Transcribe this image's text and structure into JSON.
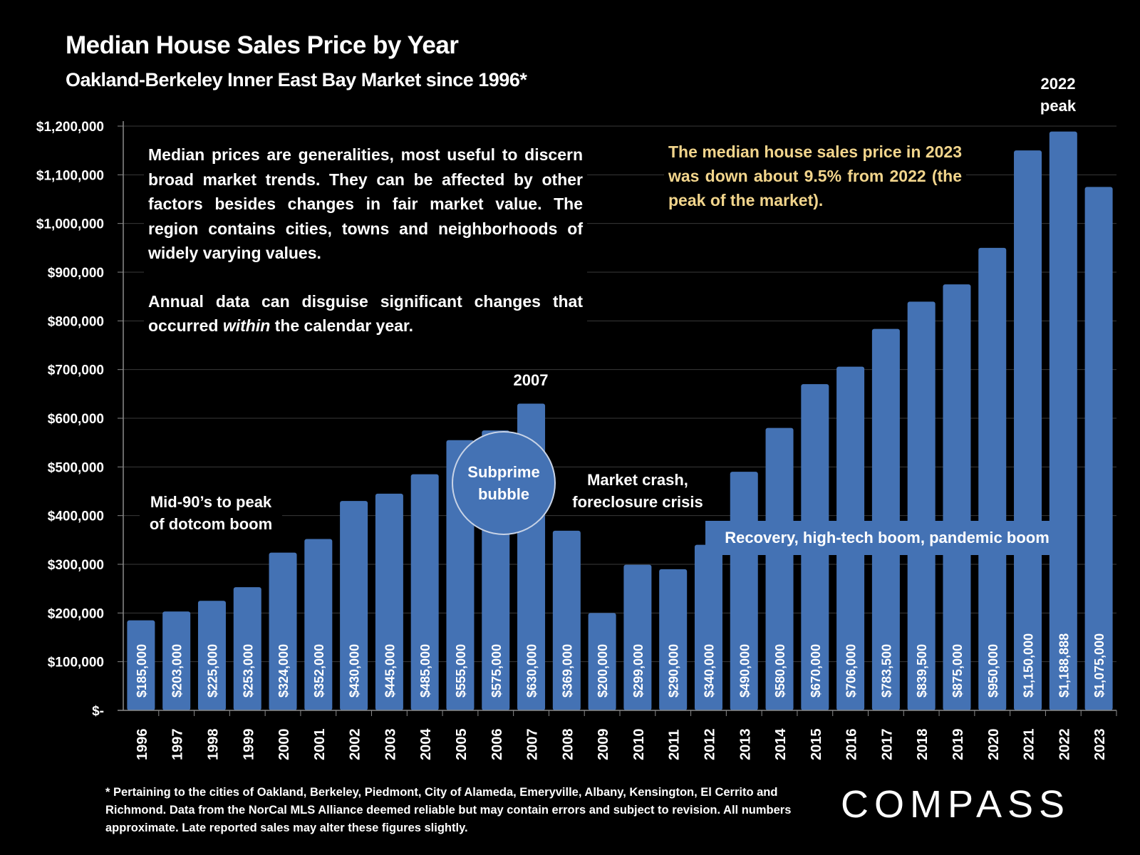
{
  "chart_data": {
    "type": "bar",
    "title": "Median House Sales Price by Year",
    "subtitle": "Oakland-Berkeley Inner East Bay Market since 1996*",
    "xlabel": "",
    "ylabel": "",
    "ylim": [
      0,
      1200000
    ],
    "grid": true,
    "categories": [
      "1996",
      "1997",
      "1998",
      "1999",
      "2000",
      "2001",
      "2002",
      "2003",
      "2004",
      "2005",
      "2006",
      "2007",
      "2008",
      "2009",
      "2010",
      "2011",
      "2012",
      "2013",
      "2014",
      "2015",
      "2016",
      "2017",
      "2018",
      "2019",
      "2020",
      "2021",
      "2022",
      "2023"
    ],
    "values": [
      185000,
      203000,
      225000,
      253000,
      324000,
      352000,
      430000,
      445000,
      485000,
      555000,
      575000,
      630000,
      369000,
      200000,
      299000,
      290000,
      340000,
      490000,
      580000,
      670000,
      706000,
      783500,
      839500,
      875000,
      950000,
      1150000,
      1188888,
      1075000
    ],
    "data_labels": [
      "$185,000",
      "$203,000",
      "$225,000",
      "$253,000",
      "$324,000",
      "$352,000",
      "$430,000",
      "$445,000",
      "$485,000",
      "$555,000",
      "$575,000",
      "$630,000",
      "$369,000",
      "$200,000",
      "$299,000",
      "$290,000",
      "$340,000",
      "$490,000",
      "$580,000",
      "$670,000",
      "$706,000",
      "$783,500",
      "$839,500",
      "$875,000",
      "$950,000",
      "$1,150,000",
      "$1,188,888",
      "$1,075,000"
    ],
    "y_ticks": [
      {
        "value": 0,
        "label": "$-"
      },
      {
        "value": 100000,
        "label": "$100,000"
      },
      {
        "value": 200000,
        "label": "$200,000"
      },
      {
        "value": 300000,
        "label": "$300,000"
      },
      {
        "value": 400000,
        "label": "$400,000"
      },
      {
        "value": 500000,
        "label": "$500,000"
      },
      {
        "value": 600000,
        "label": "$600,000"
      },
      {
        "value": 700000,
        "label": "$700,000"
      },
      {
        "value": 800000,
        "label": "$800,000"
      },
      {
        "value": 900000,
        "label": "$900,000"
      },
      {
        "value": 1000000,
        "label": "$1,000,000"
      },
      {
        "value": 1100000,
        "label": "$1,100,000"
      },
      {
        "value": 1200000,
        "label": "$1,200,000"
      }
    ],
    "bar_color": "#4472b4",
    "annotations": {
      "peak_2022_line1": "2022",
      "peak_2022_line2": "peak",
      "year_2007": "2007",
      "subprime_line1": "Subprime",
      "subprime_line2": "bubble",
      "dotcom_line1": "Mid-90’s to peak",
      "dotcom_line2": "of dotcom boom",
      "crash_line1": "Market crash,",
      "crash_line2": "foreclosure crisis",
      "recovery": "Recovery, high-tech boom, pandemic boom"
    }
  },
  "notes": {
    "para1": "Median prices are generalities, most useful to discern broad market trends. They can be affected by other factors besides changes in fair market value. The region contains cities, towns and neighborhoods of widely varying values.",
    "para2_before": "Annual data can disguise significant changes that occurred ",
    "para2_em": "within",
    "para2_after": " the calendar year.",
    "highlight": "The median house sales price in 2023 was down about 9.5% from 2022 (the peak of the market).",
    "highlight_color": "#f2d58c"
  },
  "footnote": "* Pertaining to the cities of Oakland, Berkeley, Piedmont, City of Alameda, Emeryville, Albany, Kensington, El Cerrito and Richmond. Data from the NorCal MLS Alliance deemed reliable but may contain errors and subject to revision. All numbers approximate. Late reported sales may alter these figures slightly.",
  "logo": "COMPASS"
}
